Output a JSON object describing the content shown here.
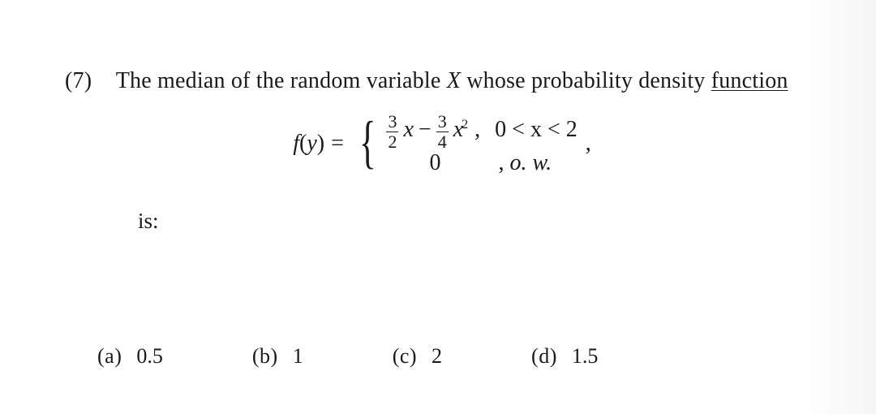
{
  "question": {
    "number": "(7)",
    "stem_pre": "The median of the random variable ",
    "var": "X",
    "stem_mid": " whose probability density ",
    "stem_underlined": "function",
    "is_label": "is:"
  },
  "formula": {
    "fn_name": "f",
    "fn_arg_open": "(",
    "fn_arg": "y",
    "fn_arg_close": ")",
    "eq": " = ",
    "case1": {
      "frac1_num": "3",
      "frac1_den": "2",
      "x1": "x",
      "minus": " − ",
      "frac2_num": "3",
      "frac2_den": "4",
      "x2": "x",
      "exp": "2",
      "cond_prefix": " ,",
      "cond": "0 < x < 2"
    },
    "case2": {
      "zero": "0",
      "cond_prefix": ", ",
      "cond": "o. w."
    },
    "trailing": ","
  },
  "options": {
    "a": {
      "label": "(a)",
      "value": "0.5"
    },
    "b": {
      "label": "(b)",
      "value": "1"
    },
    "c": {
      "label": "(c)",
      "value": "2"
    },
    "d": {
      "label": "(d)",
      "value": "1.5"
    }
  },
  "colors": {
    "text": "#1a1a1a",
    "background": "#ffffff"
  },
  "fonts": {
    "body_pt": 21,
    "family": "Times New Roman"
  }
}
